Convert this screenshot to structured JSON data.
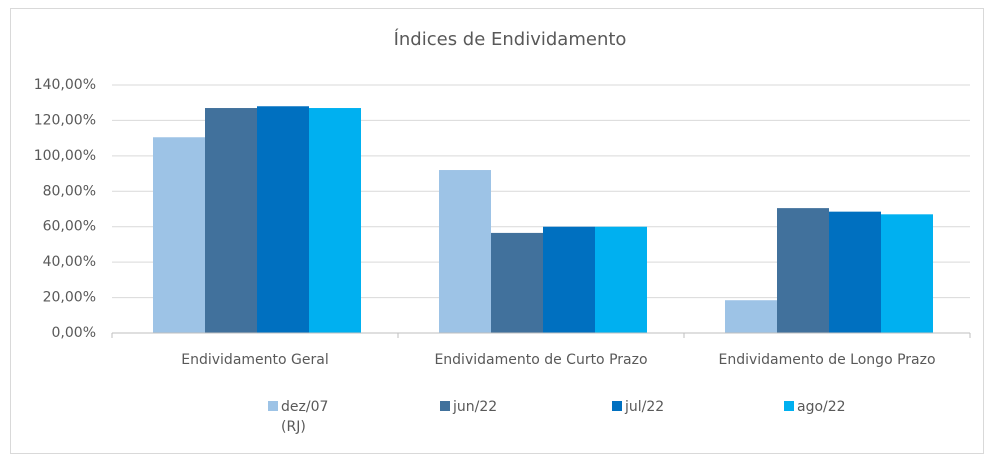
{
  "chart_data": {
    "type": "bar",
    "title": "Índices de Endividamento",
    "categories": [
      "Endividamento Geral",
      "Endividamento de Curto Prazo",
      "Endividamento de Longo Prazo"
    ],
    "series": [
      {
        "name": "dez/07 (RJ)",
        "color": "#9dc3e6",
        "values": [
          110.5,
          92,
          18.5
        ]
      },
      {
        "name": "jun/22",
        "color": "#41719c",
        "values": [
          127,
          56.5,
          70.5
        ]
      },
      {
        "name": "jul/22",
        "color": "#0070c0",
        "values": [
          128,
          60,
          68.5
        ]
      },
      {
        "name": "ago/22",
        "color": "#00b0f0",
        "values": [
          127,
          60,
          67
        ]
      }
    ],
    "ylim": [
      0,
      140
    ],
    "yticks": [
      {
        "value": 0,
        "label": "0,00%"
      },
      {
        "value": 20,
        "label": "20,00%"
      },
      {
        "value": 40,
        "label": "40,00%"
      },
      {
        "value": 60,
        "label": "60,00%"
      },
      {
        "value": 80,
        "label": "80,00%"
      },
      {
        "value": 100,
        "label": "100,00%"
      },
      {
        "value": 120,
        "label": "120,00%"
      },
      {
        "value": 140,
        "label": "140,00%"
      }
    ],
    "grid": true
  }
}
